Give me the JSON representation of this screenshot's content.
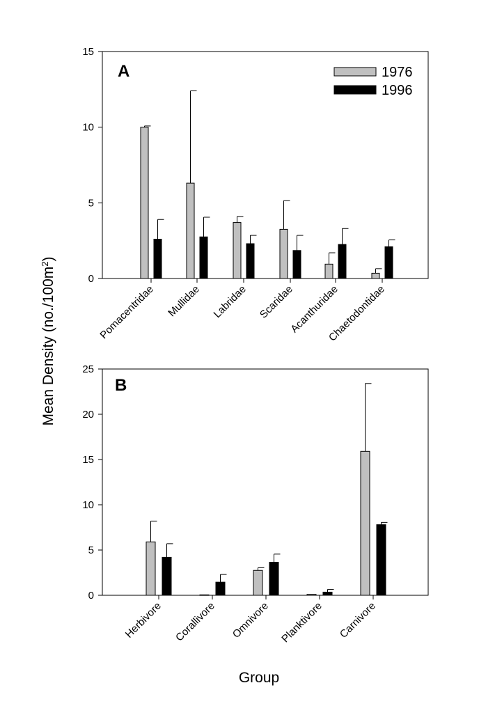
{
  "figure": {
    "ylabel_main": "Mean Density (no./100m",
    "ylabel_sup": "2",
    "ylabel_close": ")",
    "xlabel": "Group"
  },
  "colors": {
    "series_1976": "#c0c0c0",
    "series_1996": "#000000",
    "axis": "#000000"
  },
  "chart_data": [
    {
      "type": "bar",
      "panel": "A",
      "categories": [
        "Pomacentridae",
        "Mullidae",
        "Labridae",
        "Scaridae",
        "Acanthuridae",
        "Chaetodontidae"
      ],
      "ylim": [
        0,
        15
      ],
      "yticks": [
        0,
        5,
        10,
        15
      ],
      "xlabel": "",
      "ylabel": "",
      "legend": {
        "placement": "top-right",
        "entries": [
          "1976",
          "1996"
        ]
      },
      "series": [
        {
          "name": "1976",
          "values": [
            10.0,
            6.3,
            3.7,
            3.25,
            0.95,
            0.35
          ],
          "errors": [
            0.08,
            6.1,
            0.4,
            1.9,
            0.75,
            0.3
          ]
        },
        {
          "name": "1996",
          "values": [
            2.6,
            2.75,
            2.3,
            1.85,
            2.25,
            2.1
          ],
          "errors": [
            1.3,
            1.3,
            0.55,
            1.0,
            1.05,
            0.45
          ]
        }
      ]
    },
    {
      "type": "bar",
      "panel": "B",
      "categories": [
        "Herbivore",
        "Corallivore",
        "Omnivore",
        "Planktivore",
        "Carnivore"
      ],
      "ylim": [
        0,
        25
      ],
      "yticks": [
        0,
        5,
        10,
        15,
        20,
        25
      ],
      "xlabel": "Group",
      "ylabel": "",
      "series": [
        {
          "name": "1976",
          "values": [
            5.9,
            0.05,
            2.75,
            0.1,
            15.9
          ],
          "errors": [
            2.3,
            0.0,
            0.3,
            0.0,
            7.5
          ]
        },
        {
          "name": "1996",
          "values": [
            4.2,
            1.45,
            3.65,
            0.35,
            7.8
          ],
          "errors": [
            1.5,
            0.85,
            0.9,
            0.3,
            0.25
          ]
        }
      ]
    }
  ]
}
